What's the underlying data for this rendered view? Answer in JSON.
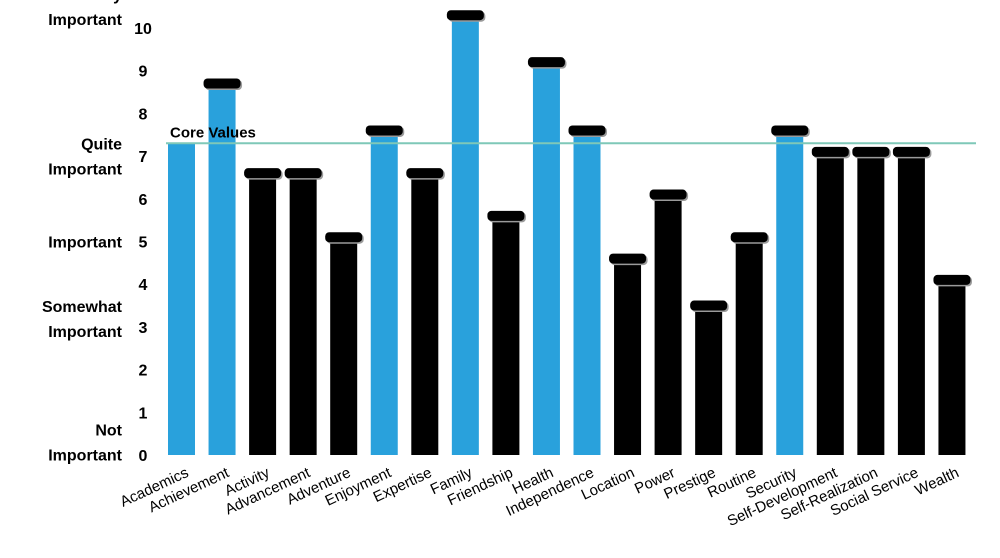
{
  "chart_data": {
    "type": "bar",
    "categories": [
      "Academics",
      "Achievement",
      "Activity",
      "Advancement",
      "Adventure",
      "Enjoyment",
      "Expertise",
      "Family",
      "Friendship",
      "Health",
      "Independence",
      "Location",
      "Power",
      "Prestige",
      "Routine",
      "Security",
      "Self-Development",
      "Self-Realization",
      "Social Service",
      "Wealth"
    ],
    "values": [
      7.3,
      8.7,
      6.6,
      6.6,
      5.1,
      7.6,
      6.6,
      10.3,
      5.6,
      9.2,
      7.6,
      4.6,
      6.1,
      3.5,
      5.1,
      7.6,
      7.1,
      7.1,
      7.1,
      4.1
    ],
    "colors": [
      "#29a1dc",
      "#29a1dc",
      "#000000",
      "#000000",
      "#000000",
      "#29a1dc",
      "#000000",
      "#29a1dc",
      "#000000",
      "#29a1dc",
      "#29a1dc",
      "#000000",
      "#000000",
      "#000000",
      "#000000",
      "#29a1dc",
      "#000000",
      "#000000",
      "#000000",
      "#000000"
    ],
    "bar_caps": [
      false,
      true,
      true,
      true,
      true,
      true,
      true,
      true,
      true,
      true,
      true,
      true,
      true,
      true,
      true,
      true,
      true,
      true,
      true,
      true
    ],
    "highlight_color": "#29a1dc",
    "default_color": "#000000",
    "ylim": [
      0,
      10.3
    ],
    "y_ticks": [
      "0",
      "1",
      "2",
      "3",
      "4",
      "5",
      "6",
      "7",
      "8",
      "9",
      "10"
    ],
    "y_category_labels": [
      {
        "at": 10.5,
        "lines": [
          "Very",
          "Important"
        ]
      },
      {
        "at": 7.0,
        "lines": [
          "Quite",
          "Important"
        ]
      },
      {
        "at": 5.0,
        "lines": [
          "Important"
        ]
      },
      {
        "at": 3.2,
        "lines": [
          "Somewhat",
          "Important"
        ]
      },
      {
        "at": 0.3,
        "lines": [
          "Not",
          "Important"
        ]
      }
    ],
    "reference_line": {
      "value": 7.3,
      "label": "Core Values",
      "color": "#7fc8b8"
    },
    "grid": false
  }
}
